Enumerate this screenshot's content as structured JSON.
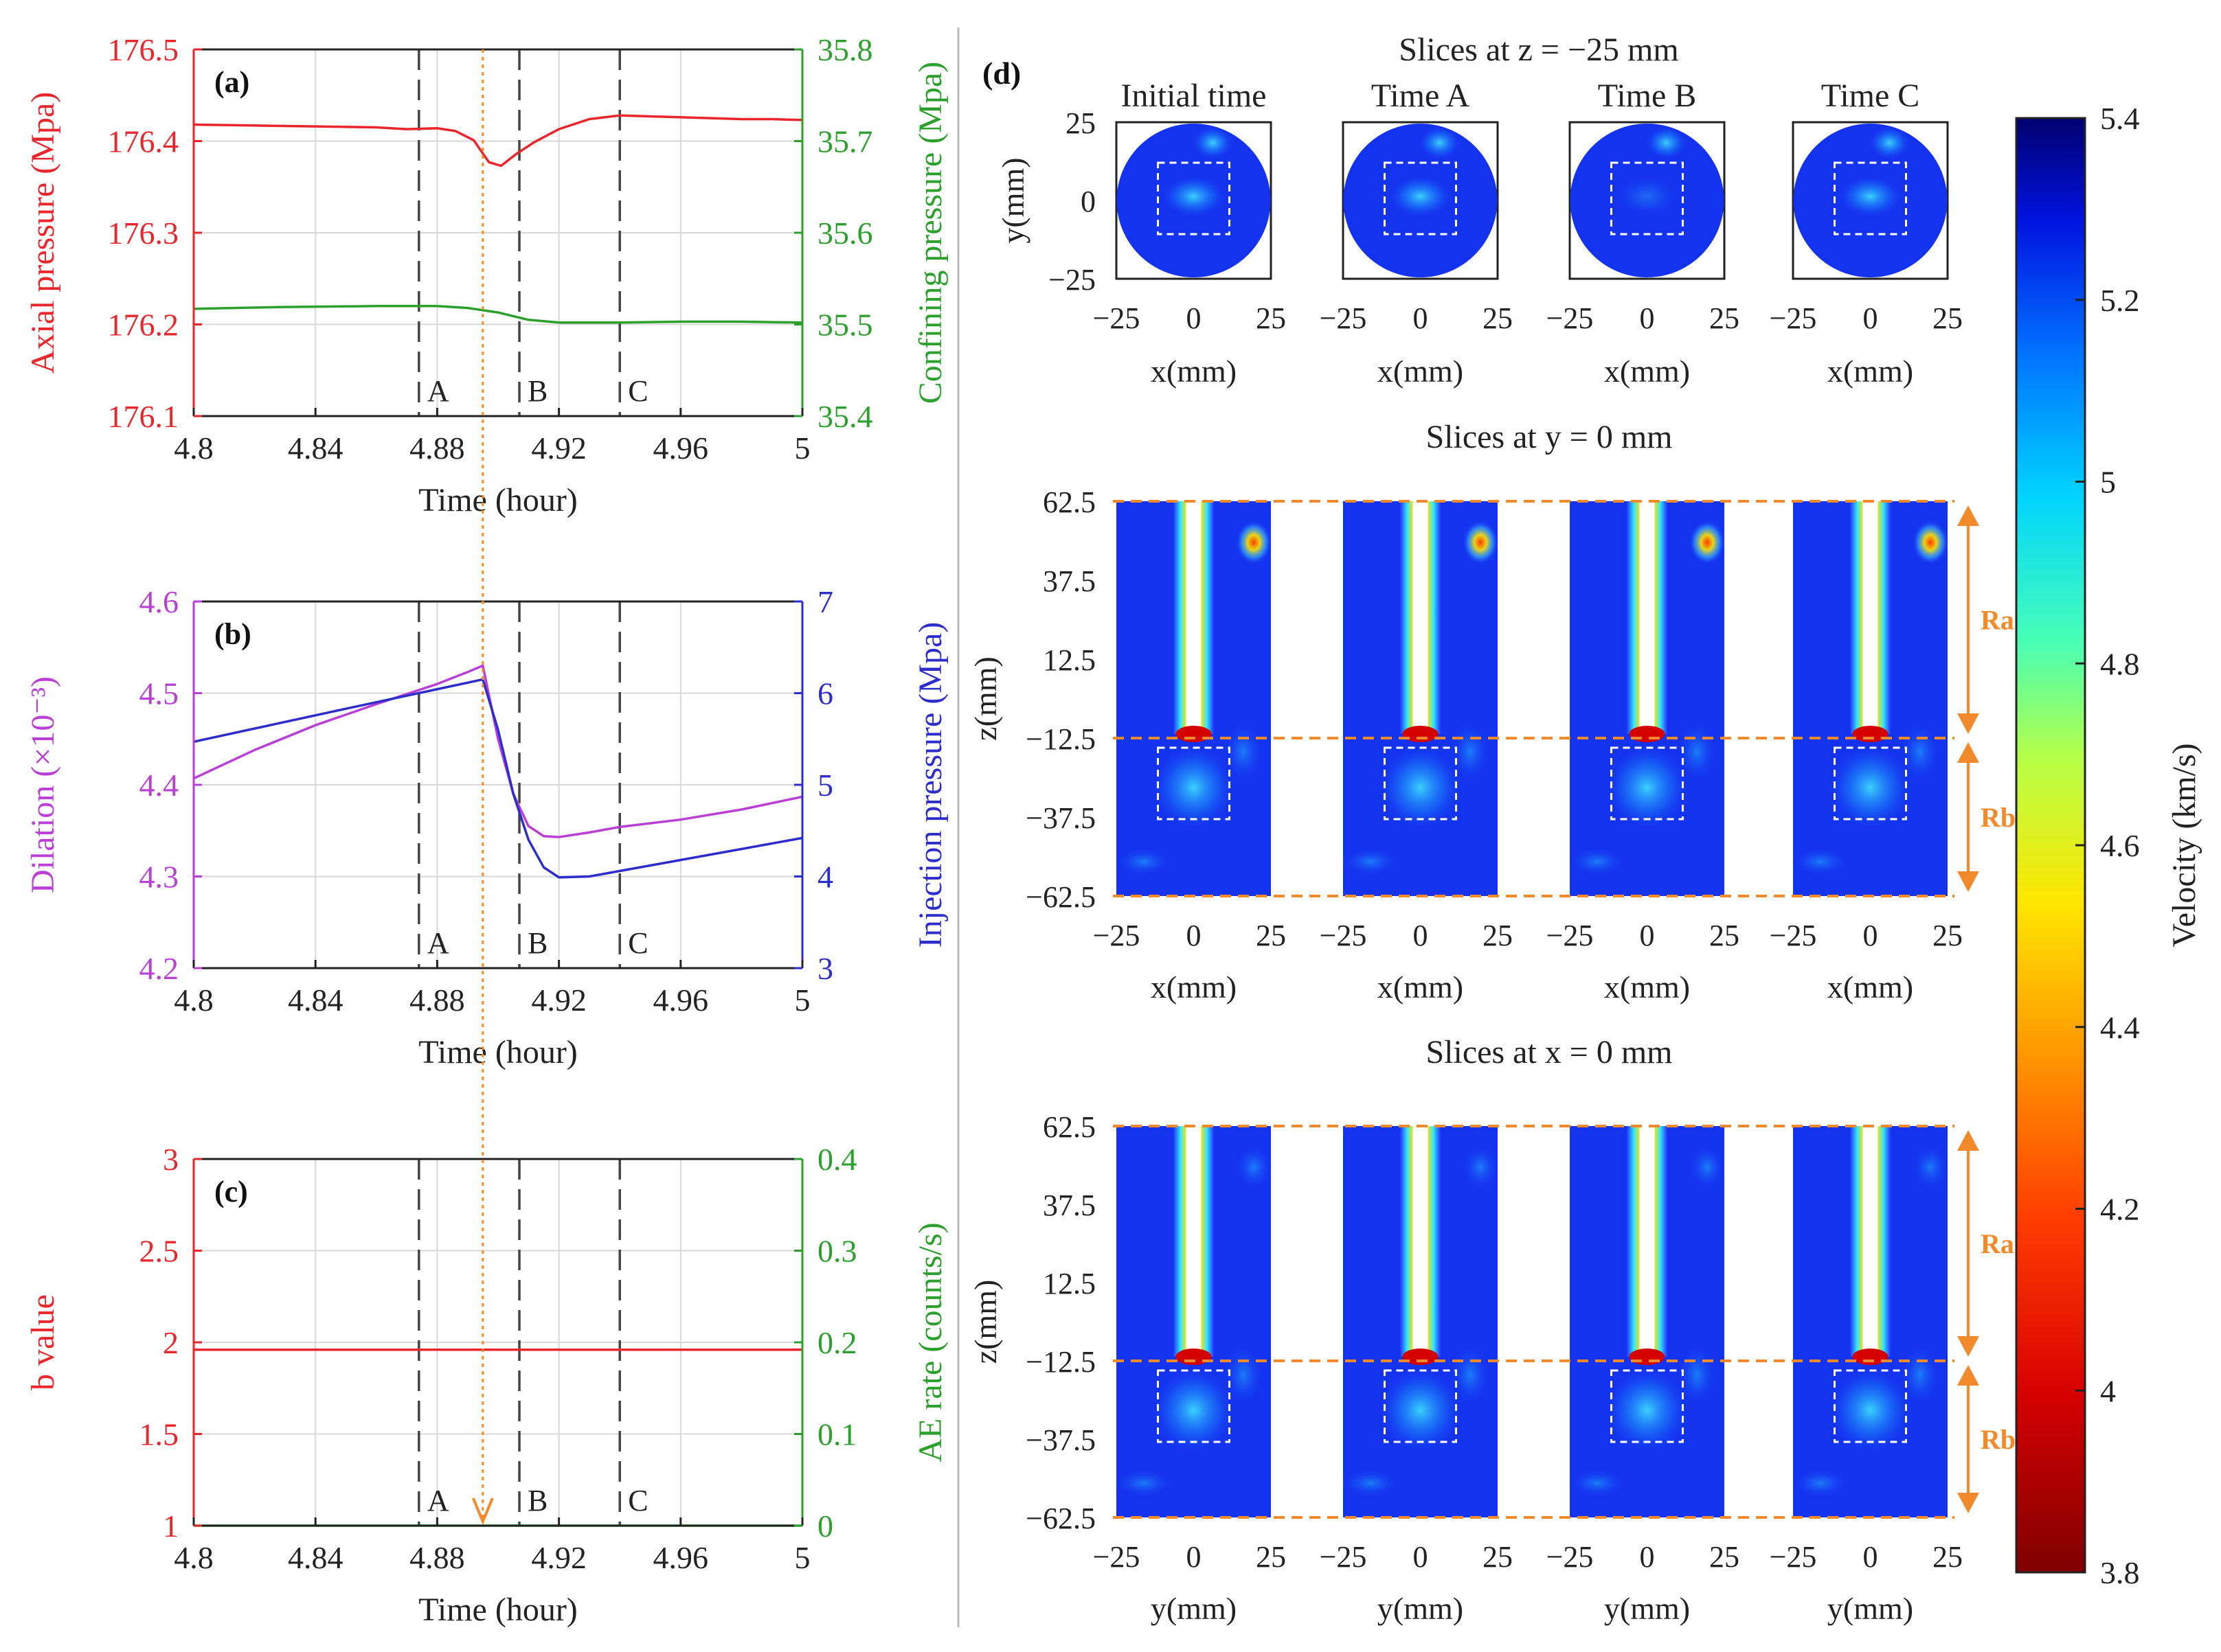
{
  "colors": {
    "axial": "#e8262b",
    "confining": "#2ca02c",
    "dilation": "#b93fd6",
    "injection": "#2d2dcc",
    "bvalue": "#e8262b",
    "ae": "#2ca02c",
    "accent": "#f08a2b",
    "marker": "#444444"
  },
  "events": [
    {
      "label": "A",
      "time": 4.874
    },
    {
      "label": "B",
      "time": 4.907
    },
    {
      "label": "C",
      "time": 4.94
    }
  ],
  "chart_data": [
    {
      "id": "a",
      "type": "line",
      "panel_label": "(a)",
      "xlabel": "Time (hour)",
      "xlim": [
        4.8,
        5.0
      ],
      "xticks": [
        4.8,
        4.84,
        4.88,
        4.92,
        4.96,
        5.0
      ],
      "xtick_labels": [
        "4.8",
        "4.84",
        "4.88",
        "4.92",
        "4.96",
        "5"
      ],
      "ylabel_left": "Axial pressure  (Mpa)",
      "ylim_left": [
        176.1,
        176.5
      ],
      "yticks_left": [
        "176.1",
        "176.2",
        "176.3",
        "176.4",
        "176.5"
      ],
      "ylabel_right": "Confining pressure (Mpa)",
      "ylim_right": [
        35.4,
        35.8
      ],
      "yticks_right": [
        "35.4",
        "35.5",
        "35.6",
        "35.7",
        "35.8"
      ],
      "series": [
        {
          "name": "Axial pressure",
          "axis": "left",
          "color_key": "axial",
          "x": [
            4.8,
            4.82,
            4.84,
            4.86,
            4.87,
            4.88,
            4.886,
            4.892,
            4.897,
            4.901,
            4.906,
            4.912,
            4.92,
            4.93,
            4.94,
            4.95,
            4.96,
            4.97,
            4.98,
            4.99,
            5.0
          ],
          "y": [
            176.418,
            176.417,
            176.416,
            176.415,
            176.413,
            176.414,
            176.411,
            176.401,
            176.377,
            176.373,
            176.386,
            176.399,
            176.413,
            176.424,
            176.428,
            176.427,
            176.426,
            176.425,
            176.424,
            176.424,
            176.423
          ]
        },
        {
          "name": "Confining pressure",
          "axis": "right",
          "color_key": "confining",
          "x": [
            4.8,
            4.83,
            4.86,
            4.88,
            4.89,
            4.9,
            4.91,
            4.92,
            4.94,
            4.96,
            4.98,
            5.0
          ],
          "y": [
            35.517,
            35.519,
            35.52,
            35.52,
            35.518,
            35.513,
            35.505,
            35.502,
            35.502,
            35.503,
            35.503,
            35.502
          ]
        }
      ]
    },
    {
      "id": "b",
      "type": "line",
      "panel_label": "(b)",
      "xlabel": "Time (hour)",
      "xlim": [
        4.8,
        5.0
      ],
      "xticks": [
        4.8,
        4.84,
        4.88,
        4.92,
        4.96,
        5.0
      ],
      "xtick_labels": [
        "4.8",
        "4.84",
        "4.88",
        "4.92",
        "4.96",
        "5"
      ],
      "ylabel_left": "Dilation  (×10⁻³)",
      "ylim_left": [
        4.2,
        4.6
      ],
      "yticks_left": [
        "4.2",
        "4.3",
        "4.4",
        "4.5",
        "4.6"
      ],
      "ylabel_right": "Injection pressure (Mpa)",
      "ylim_right": [
        3,
        7
      ],
      "yticks_right": [
        "3",
        "4",
        "5",
        "6",
        "7"
      ],
      "series": [
        {
          "name": "Dilation",
          "axis": "left",
          "color_key": "dilation",
          "x": [
            4.8,
            4.82,
            4.84,
            4.86,
            4.88,
            4.89,
            4.895,
            4.9,
            4.905,
            4.91,
            4.915,
            4.92,
            4.93,
            4.94,
            4.96,
            4.98,
            5.0
          ],
          "y": [
            4.407,
            4.438,
            4.465,
            4.488,
            4.51,
            4.523,
            4.53,
            4.45,
            4.39,
            4.355,
            4.344,
            4.343,
            4.348,
            4.354,
            4.362,
            4.373,
            4.387
          ]
        },
        {
          "name": "Injection pressure",
          "axis": "right",
          "color_key": "injection",
          "x": [
            4.8,
            4.85,
            4.895,
            4.9,
            4.905,
            4.91,
            4.915,
            4.92,
            4.93,
            4.94,
            4.96,
            4.98,
            5.0
          ],
          "y": [
            5.47,
            5.83,
            6.15,
            5.6,
            4.9,
            4.4,
            4.1,
            3.99,
            4.0,
            4.06,
            4.18,
            4.3,
            4.42
          ]
        }
      ]
    },
    {
      "id": "c",
      "type": "line",
      "panel_label": "(c)",
      "xlabel": "Time (hour)",
      "xlim": [
        4.8,
        5.0
      ],
      "xticks": [
        4.8,
        4.84,
        4.88,
        4.92,
        4.96,
        5.0
      ],
      "xtick_labels": [
        "4.8",
        "4.84",
        "4.88",
        "4.92",
        "4.96",
        "5"
      ],
      "ylabel_left": "b value",
      "ylim_left": [
        1,
        3
      ],
      "yticks_left": [
        "1",
        "1.5",
        "2",
        "2.5",
        "3"
      ],
      "ylabel_right": "AE rate (counts/s)",
      "ylim_right": [
        0,
        0.4
      ],
      "yticks_right": [
        "0",
        "0.1",
        "0.2",
        "0.3",
        "0.4"
      ],
      "series": [
        {
          "name": "b value",
          "axis": "left",
          "color_key": "bvalue",
          "x": [
            4.8,
            5.0
          ],
          "y": [
            1.96,
            1.96
          ]
        },
        {
          "name": "AE rate",
          "axis": "right",
          "color_key": "ae",
          "x": [
            4.8,
            5.0
          ],
          "y": [
            0,
            0
          ]
        }
      ]
    },
    {
      "id": "d",
      "type": "heatmap",
      "panel_label": "(d)",
      "columns": [
        "Initial time",
        "Time A",
        "Time B",
        "Time C"
      ],
      "row1": {
        "title": "Slices at z = −25 mm",
        "xlabel": "x(mm)",
        "ylabel": "y(mm)",
        "xticks": [
          "−25",
          "0",
          "25"
        ],
        "yticks": [
          "25",
          "0",
          "−25"
        ]
      },
      "row2": {
        "title": "Slices at y = 0 mm",
        "xlabel": "x(mm)",
        "ylabel": "z(mm)",
        "xticks": [
          "−25",
          "0",
          "25"
        ],
        "yticks": [
          "62.5",
          "37.5",
          "12.5",
          "−12.5",
          "−37.5",
          "−62.5"
        ]
      },
      "row3": {
        "title": "Slices at x = 0 mm",
        "xlabel": "y(mm)",
        "ylabel": "z(mm)",
        "xticks": [
          "−25",
          "0",
          "25"
        ],
        "yticks": [
          "62.5",
          "37.5",
          "12.5",
          "−12.5",
          "−37.5",
          "−62.5"
        ]
      },
      "regions": [
        "Ra",
        "Rb"
      ],
      "colorbar": {
        "label": "Velocity (km/s)",
        "min": 3.8,
        "max": 5.4,
        "ticks": [
          "3.8",
          "4",
          "4.2",
          "4.4",
          "4.6",
          "4.8",
          "5",
          "5.2",
          "5.4"
        ]
      }
    }
  ]
}
